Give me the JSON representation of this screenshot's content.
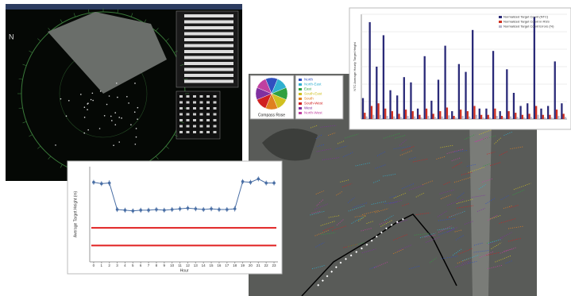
{
  "radar_window": {
    "north_label": "N"
  },
  "chart_data": [
    {
      "type": "line",
      "x": [
        0,
        1,
        2,
        3,
        4,
        5,
        6,
        7,
        8,
        9,
        10,
        11,
        12,
        13,
        14,
        15,
        16,
        17,
        18,
        19,
        20,
        21,
        22,
        23
      ],
      "values": [
        585,
        575,
        580,
        385,
        380,
        375,
        380,
        380,
        385,
        380,
        385,
        390,
        395,
        390,
        385,
        390,
        385,
        385,
        390,
        590,
        585,
        610,
        580,
        580
      ],
      "errors": [
        18,
        18,
        20,
        18,
        18,
        18,
        18,
        18,
        18,
        18,
        18,
        18,
        18,
        18,
        18,
        18,
        18,
        18,
        20,
        18,
        18,
        18,
        18,
        18
      ],
      "color": "#4a6fa5",
      "xlim": [
        -0.5,
        23.5
      ],
      "ylim": [
        0,
        700
      ],
      "xticks": [
        0,
        1,
        2,
        3,
        4,
        5,
        6,
        7,
        8,
        9,
        10,
        11,
        12,
        13,
        14,
        15,
        16,
        17,
        18,
        19,
        20,
        21,
        22,
        23
      ],
      "xlabel": "Hour",
      "ylabel": "Average Target Height (m)",
      "reference_lines": [
        250,
        120
      ],
      "reference_color": "#e02020",
      "grid": false
    },
    {
      "type": "bar",
      "categories": [
        null,
        null,
        null,
        null,
        null,
        null,
        null,
        null,
        null,
        null,
        null,
        null,
        null,
        null,
        null,
        null,
        null,
        null,
        null,
        null,
        null,
        null,
        null,
        null,
        null,
        null,
        null,
        null,
        null,
        null
      ],
      "series": [
        {
          "name": "Normalized Target Count (NTC)",
          "color": "#2a2a78",
          "values": [
            40,
            185,
            100,
            160,
            55,
            45,
            80,
            70,
            20,
            120,
            35,
            75,
            140,
            15,
            105,
            90,
            170,
            20,
            20,
            130,
            15,
            95,
            50,
            25,
            30,
            195,
            20,
            25,
            110,
            30
          ]
        },
        {
          "name": "Normalized Target Count in RSS",
          "color": "#d03020",
          "values": [
            12,
            25,
            30,
            20,
            15,
            10,
            18,
            15,
            8,
            20,
            10,
            15,
            22,
            6,
            18,
            15,
            25,
            8,
            8,
            20,
            6,
            15,
            12,
            8,
            10,
            25,
            8,
            8,
            18,
            10
          ]
        },
        {
          "name": "Normalized Target Count Errors (%)",
          "color": "#b8b8cc",
          "values": [
            5,
            8,
            8,
            6,
            5,
            4,
            6,
            5,
            3,
            6,
            4,
            5,
            7,
            3,
            6,
            5,
            8,
            3,
            3,
            6,
            3,
            5,
            4,
            3,
            4,
            8,
            3,
            3,
            6,
            4
          ]
        }
      ],
      "ylim": [
        0,
        200
      ],
      "ylabel": "NTC Average Hourly Target Height",
      "grid": true
    }
  ],
  "compass": {
    "title": "Compass Rose",
    "directions": [
      "North",
      "North-East",
      "East",
      "South-East",
      "South",
      "South-West",
      "West",
      "North-West"
    ],
    "colors": [
      "#3050c0",
      "#30b0d0",
      "#30a040",
      "#d0c020",
      "#e08020",
      "#d02020",
      "#8030a0",
      "#c040a0"
    ]
  }
}
